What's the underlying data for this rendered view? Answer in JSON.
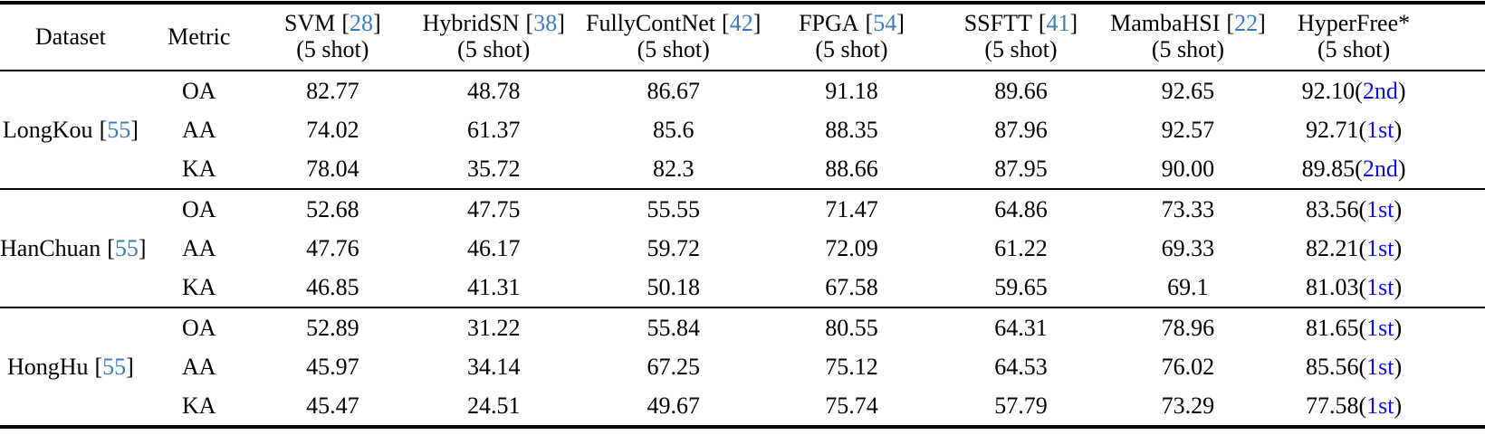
{
  "colors": {
    "citation_link": "#3d7cba",
    "rank_highlight": "#0b0bee",
    "text": "#000000",
    "rule": "#000000"
  },
  "punctuation": {
    "open_bracket": "[",
    "close_bracket": "]",
    "open_paren": "(",
    "close_paren": ")"
  },
  "header": {
    "dataset_label": "Dataset",
    "metric_label": "Metric",
    "methods": [
      {
        "name": "SVM",
        "cite": "28",
        "shots": "(5 shot)"
      },
      {
        "name": "HybridSN",
        "cite": "38",
        "shots": "(5 shot)"
      },
      {
        "name": "FullyContNet",
        "cite": "42",
        "shots": "(5 shot)"
      },
      {
        "name": "FPGA",
        "cite": "54",
        "shots": "(5 shot)"
      },
      {
        "name": "SSFTT",
        "cite": "41",
        "shots": "(5 shot)"
      },
      {
        "name": "MambaHSI",
        "cite": "22",
        "shots": "(5 shot)"
      },
      {
        "name": "HyperFree*",
        "cite": null,
        "shots": "(5 shot)"
      }
    ]
  },
  "groups": [
    {
      "dataset": "LongKou",
      "cite": "55",
      "rows": [
        {
          "metric": "OA",
          "values": [
            "82.77",
            "48.78",
            "86.67",
            "91.18",
            "89.66",
            "92.65"
          ],
          "hyperfree": {
            "value": "92.10",
            "rank": "2nd"
          }
        },
        {
          "metric": "AA",
          "values": [
            "74.02",
            "61.37",
            "85.6",
            "88.35",
            "87.96",
            "92.57"
          ],
          "hyperfree": {
            "value": "92.71",
            "rank": "1st"
          }
        },
        {
          "metric": "KA",
          "values": [
            "78.04",
            "35.72",
            "82.3",
            "88.66",
            "87.95",
            "90.00"
          ],
          "hyperfree": {
            "value": "89.85",
            "rank": "2nd"
          }
        }
      ]
    },
    {
      "dataset": "HanChuan",
      "cite": "55",
      "rows": [
        {
          "metric": "OA",
          "values": [
            "52.68",
            "47.75",
            "55.55",
            "71.47",
            "64.86",
            "73.33"
          ],
          "hyperfree": {
            "value": "83.56",
            "rank": "1st"
          }
        },
        {
          "metric": "AA",
          "values": [
            "47.76",
            "46.17",
            "59.72",
            "72.09",
            "61.22",
            "69.33"
          ],
          "hyperfree": {
            "value": "82.21",
            "rank": "1st"
          }
        },
        {
          "metric": "KA",
          "values": [
            "46.85",
            "41.31",
            "50.18",
            "67.58",
            "59.65",
            "69.1"
          ],
          "hyperfree": {
            "value": "81.03",
            "rank": "1st"
          }
        }
      ]
    },
    {
      "dataset": "HongHu",
      "cite": "55",
      "rows": [
        {
          "metric": "OA",
          "values": [
            "52.89",
            "31.22",
            "55.84",
            "80.55",
            "64.31",
            "78.96"
          ],
          "hyperfree": {
            "value": "81.65",
            "rank": "1st"
          }
        },
        {
          "metric": "AA",
          "values": [
            "45.97",
            "34.14",
            "67.25",
            "75.12",
            "64.53",
            "76.02"
          ],
          "hyperfree": {
            "value": "85.56",
            "rank": "1st"
          }
        },
        {
          "metric": "KA",
          "values": [
            "45.47",
            "24.51",
            "49.67",
            "75.74",
            "57.79",
            "73.29"
          ],
          "hyperfree": {
            "value": "77.58",
            "rank": "1st"
          }
        }
      ]
    }
  ]
}
